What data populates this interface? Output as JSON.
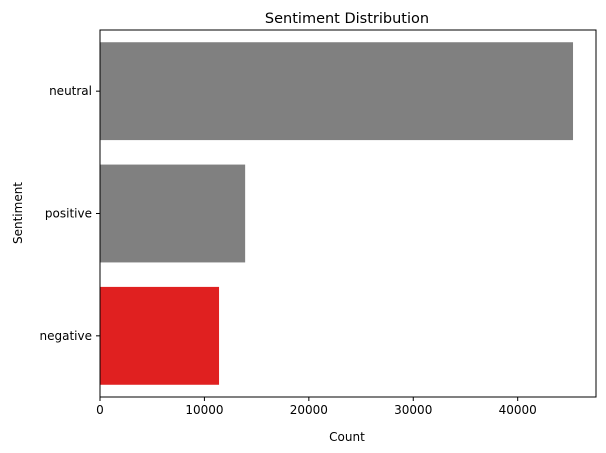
{
  "chart_data": {
    "type": "bar",
    "orientation": "horizontal",
    "title": "Sentiment Distribution",
    "xlabel": "Count",
    "ylabel": "Sentiment",
    "categories": [
      "neutral",
      "positive",
      "negative"
    ],
    "values": [
      45300,
      13900,
      11400
    ],
    "bar_colors": [
      "#808080",
      "#808080",
      "#e02020"
    ],
    "xlim": [
      0,
      47500
    ],
    "xticks": [
      0,
      10000,
      20000,
      30000,
      40000
    ],
    "xtick_labels": [
      "0",
      "10000",
      "20000",
      "30000",
      "40000"
    ],
    "grid": false,
    "legend": "none"
  }
}
